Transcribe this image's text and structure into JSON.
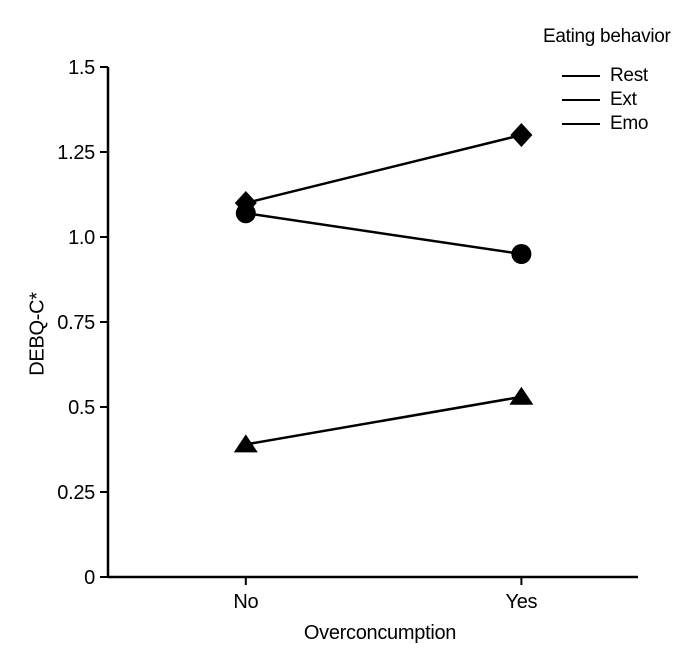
{
  "figure": {
    "background": "#ffffff",
    "ink_color": "#000000"
  },
  "chart_data": {
    "type": "line",
    "title": "",
    "legend_title": "Eating behavior",
    "legend_position": "top-right",
    "legend_entries": [
      "Rest",
      "Ext",
      "Emo"
    ],
    "categories": [
      "No",
      "Yes"
    ],
    "series": [
      {
        "name": "Rest",
        "marker": "circle",
        "values": [
          1.07,
          0.95
        ]
      },
      {
        "name": "Ext",
        "marker": "diamond",
        "values": [
          1.1,
          1.3
        ]
      },
      {
        "name": "Emo",
        "marker": "triangle",
        "values": [
          0.39,
          0.53
        ]
      }
    ],
    "xlabel": "Overconcumption",
    "ylabel": "DEBQ-C*",
    "ylim": [
      0,
      1.5
    ],
    "yticks": [
      0,
      0.25,
      0.5,
      0.75,
      1.0,
      1.25,
      1.5
    ],
    "ytick_labels": [
      "0",
      "0.25",
      "0.5",
      "0.75",
      "1.0",
      "1.25",
      "1.5"
    ],
    "grid": false,
    "line_color": "#000000",
    "marker_color": "#000000"
  }
}
